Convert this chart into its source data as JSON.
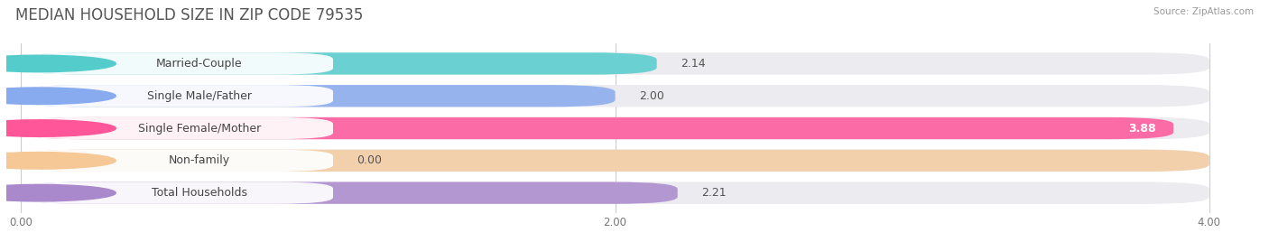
{
  "title": "MEDIAN HOUSEHOLD SIZE IN ZIP CODE 79535",
  "source": "Source: ZipAtlas.com",
  "categories": [
    "Married-Couple",
    "Single Male/Father",
    "Single Female/Mother",
    "Non-family",
    "Total Households"
  ],
  "values": [
    2.14,
    2.0,
    3.88,
    0.0,
    2.21
  ],
  "bar_colors": [
    "#55cccc",
    "#88aaee",
    "#ff5599",
    "#f5c895",
    "#aa88cc"
  ],
  "xlim_max": 4.0,
  "xticks": [
    0.0,
    2.0,
    4.0
  ],
  "xtick_labels": [
    "0.00",
    "2.00",
    "4.00"
  ],
  "background_color": "#ffffff",
  "bar_bg_color": "#ebebf0",
  "title_fontsize": 12,
  "label_fontsize": 9,
  "value_fontsize": 9
}
